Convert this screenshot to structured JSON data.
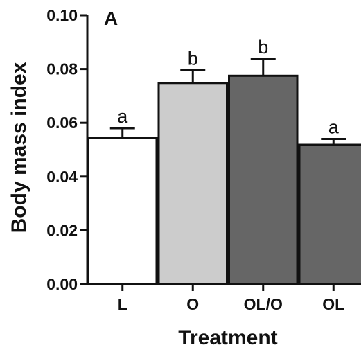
{
  "chart_data": {
    "type": "bar",
    "panel_label": "A",
    "xlabel": "Treatment",
    "ylabel": "Body mass index",
    "ylim": [
      0,
      0.1
    ],
    "yticks": [
      "0.00",
      "0.02",
      "0.04",
      "0.06",
      "0.08",
      "0.10"
    ],
    "ytick_values": [
      0,
      0.02,
      0.04,
      0.06,
      0.08,
      0.1
    ],
    "categories": [
      "L",
      "O",
      "OL/O",
      "OL"
    ],
    "values": [
      0.0545,
      0.0748,
      0.0775,
      0.0518
    ],
    "errors": [
      0.0035,
      0.0047,
      0.0062,
      0.0022
    ],
    "significance": [
      "a",
      "b",
      "b",
      "a"
    ],
    "colors": [
      "#ffffff",
      "#cccccc",
      "#666666",
      "#666666"
    ],
    "edge_color": "#111111",
    "grid": false,
    "legend": "none"
  }
}
